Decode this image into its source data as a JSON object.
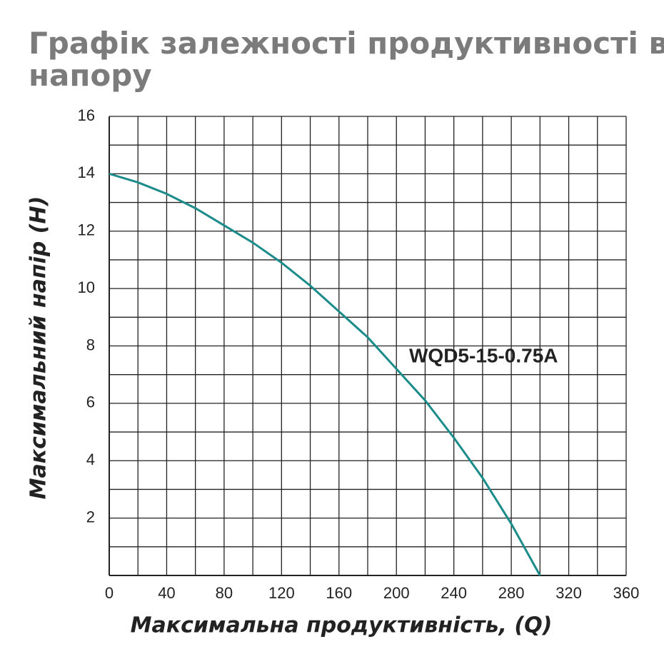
{
  "chart_data": {
    "type": "line",
    "title_lines": [
      "Графік залежності продуктивності від",
      "напору"
    ],
    "x_label": "Максимальна продуктивність, (Q)",
    "y_label": "Максимальний напір (H)",
    "x": [
      0,
      20,
      40,
      60,
      80,
      100,
      120,
      140,
      160,
      180,
      200,
      220,
      240,
      260,
      280,
      300
    ],
    "series": [
      {
        "name": "WQD5-15-0.75A",
        "color": "#1b8c8a",
        "values": [
          14,
          13.7,
          13.3,
          12.8,
          12.2,
          11.6,
          10.9,
          10.1,
          9.2,
          8.3,
          7.2,
          6.1,
          4.8,
          3.4,
          1.8,
          0
        ]
      }
    ],
    "xlim": [
      0,
      360
    ],
    "ylim": [
      0,
      16
    ],
    "xticks": [
      0,
      40,
      80,
      120,
      160,
      200,
      240,
      280,
      320,
      360
    ],
    "yticks": [
      2,
      4,
      6,
      8,
      10,
      12,
      14,
      16
    ],
    "x_minor_ticks": [
      20,
      60,
      100,
      140,
      180,
      220,
      260,
      300,
      340
    ],
    "y_minor_ticks": [
      1,
      3,
      5,
      7,
      9,
      11,
      13,
      15
    ],
    "grid": true
  }
}
